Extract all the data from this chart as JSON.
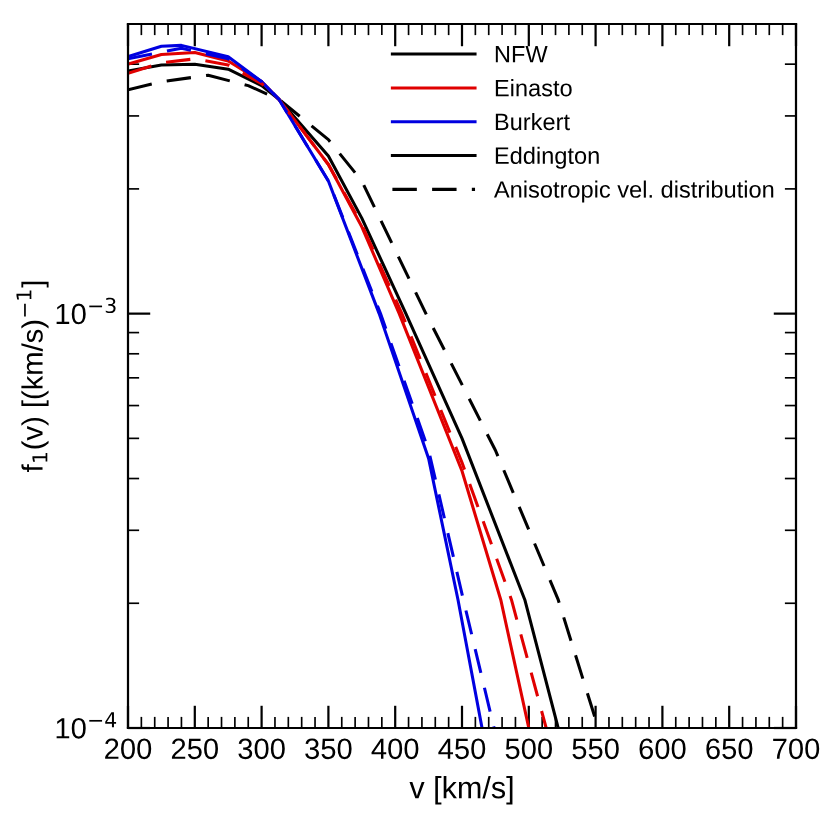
{
  "chart_data": {
    "type": "line",
    "xlabel": "v [km/s]",
    "ylabel": "f$_{1}$(v) [(km/s)$^{−1}$]",
    "log": "y",
    "xlim": [
      200,
      700
    ],
    "xticks": [
      200,
      250,
      300,
      350,
      400,
      450,
      500,
      550,
      600,
      650,
      700
    ],
    "ylim": [
      0.0001,
      0.005
    ],
    "yticks": [
      {
        "value": 0.001,
        "label": "10$^{−3}$"
      },
      {
        "value": 0.0001,
        "label": "10$^{−4}$"
      }
    ],
    "grid": false,
    "legend": "top right",
    "marker": "none",
    "series": [
      {
        "name": "NFW",
        "color": "#000000",
        "line_style": "solid",
        "x": [
          200,
          225,
          250,
          275,
          300,
          313,
          350,
          375,
          408,
          450,
          497,
          522
        ],
        "values": [
          0.00385,
          0.00398,
          0.004,
          0.00389,
          0.00355,
          0.00329,
          0.0024,
          0.0017,
          0.001,
          0.0005,
          0.000204,
          0.0001
        ]
      },
      {
        "name": "Einasto",
        "color": "#e00000",
        "line_style": "solid",
        "x": [
          200,
          225,
          250,
          275,
          300,
          313,
          350,
          375,
          403,
          450,
          479,
          500
        ],
        "values": [
          0.004,
          0.00422,
          0.00427,
          0.00407,
          0.00363,
          0.00329,
          0.00229,
          0.00162,
          0.001,
          0.000417,
          0.000204,
          0.0001
        ]
      },
      {
        "name": "Burkert",
        "color": "#0000e0",
        "line_style": "solid",
        "x": [
          200,
          225,
          240,
          275,
          300,
          313,
          350,
          388,
          425,
          447,
          465
        ],
        "values": [
          0.00417,
          0.00442,
          0.00444,
          0.00417,
          0.00363,
          0.00329,
          0.00209,
          0.001,
          0.000447,
          0.000204,
          0.0001
        ]
      },
      {
        "name": "Eddington",
        "color": "#000000",
        "line_style": "solid"
      },
      {
        "name": "Anisotropic vel. distribution",
        "color": "#000000",
        "line_style": "dashed",
        "x": [
          200,
          225,
          260,
          290,
          313,
          350,
          375,
          423,
          475,
          522,
          552
        ],
        "values": [
          0.00347,
          0.00363,
          0.00376,
          0.00355,
          0.00329,
          0.00263,
          0.00209,
          0.001,
          0.000468,
          0.000204,
          0.0001
        ]
      },
      {
        "color": "#e00000",
        "line_style": "dashed",
        "x": [
          200,
          225,
          250,
          275,
          300,
          313,
          350,
          375,
          405,
          450,
          487,
          513
        ],
        "values": [
          0.0038,
          0.00403,
          0.00412,
          0.00398,
          0.00359,
          0.00329,
          0.00229,
          0.00164,
          0.001,
          0.000437,
          0.000204,
          0.0001
        ]
      },
      {
        "color": "#0000e0",
        "line_style": "dashed",
        "x": [
          200,
          240,
          275,
          300,
          313,
          350,
          389,
          425,
          451,
          474
        ],
        "values": [
          0.00412,
          0.00437,
          0.00412,
          0.00363,
          0.00329,
          0.00209,
          0.001,
          0.000468,
          0.000204,
          0.0001
        ]
      }
    ]
  }
}
